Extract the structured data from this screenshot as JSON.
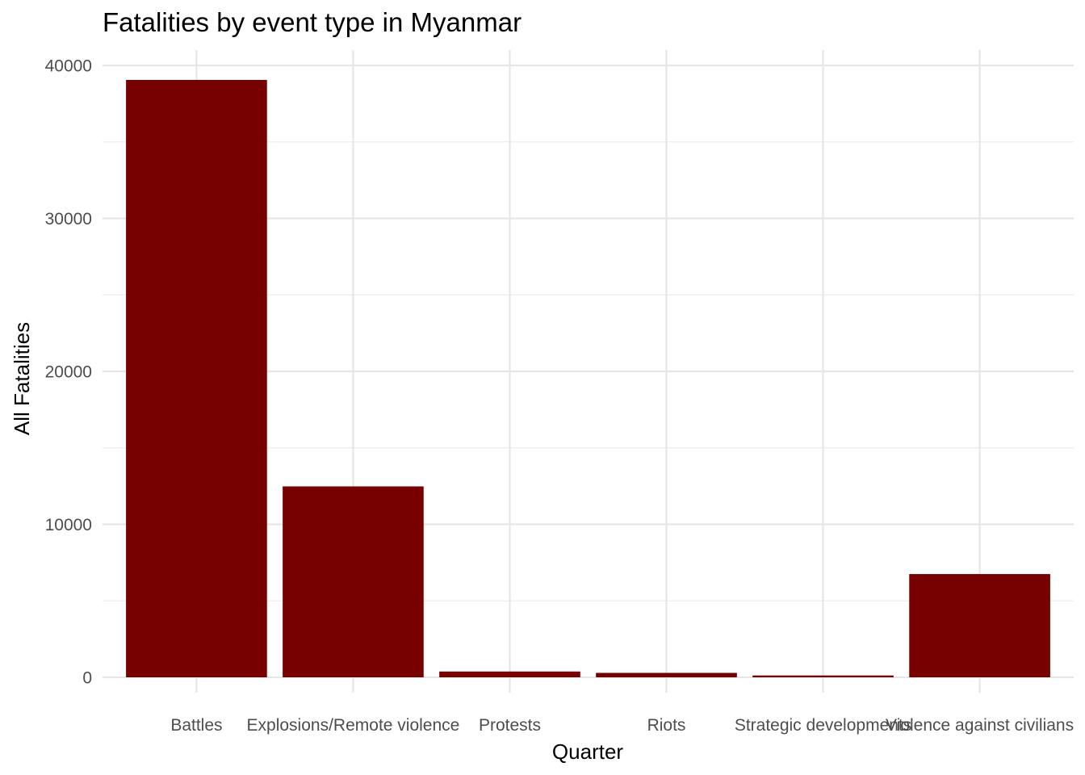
{
  "chart_data": {
    "type": "bar",
    "title": "Fatalities by event type in Myanmar",
    "xlabel": "Quarter",
    "ylabel": "All Fatalities",
    "categories": [
      "Battles",
      "Explosions/Remote violence",
      "Protests",
      "Riots",
      "Strategic developments",
      "Violence against civilians"
    ],
    "values": [
      39050,
      12480,
      380,
      290,
      120,
      6750
    ],
    "ylim": [
      0,
      40000
    ],
    "yticks": [
      0,
      10000,
      20000,
      30000,
      40000
    ],
    "grid": true,
    "bar_color": "#770000",
    "background": "#ffffff"
  }
}
